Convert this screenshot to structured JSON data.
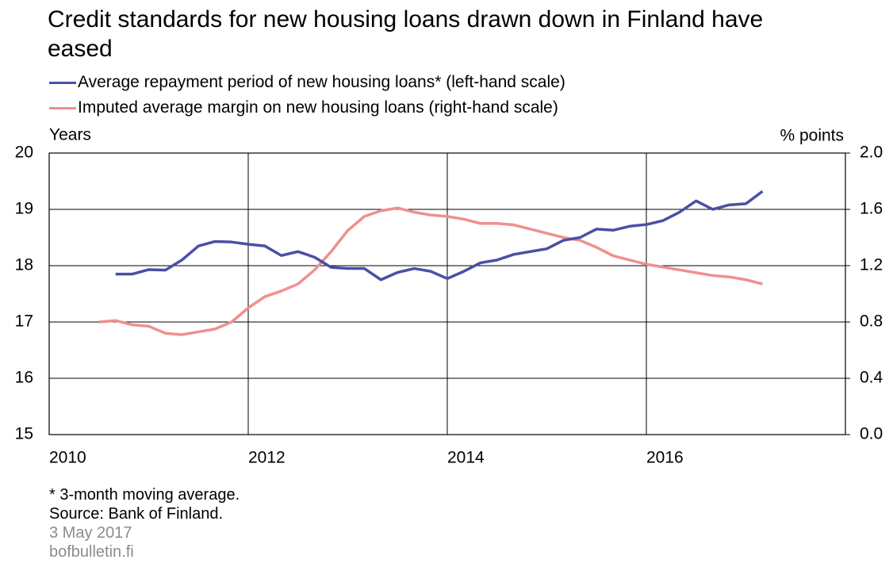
{
  "chart_data": {
    "type": "line",
    "title": "Credit standards for new housing loans drawn down in Finland have eased",
    "y_label": "Years",
    "y2_label": "% points",
    "x": [
      2010.5,
      2010.667,
      2010.833,
      2011,
      2011.167,
      2011.333,
      2011.5,
      2011.667,
      2011.833,
      2012,
      2012.167,
      2012.333,
      2012.5,
      2012.667,
      2012.833,
      2013,
      2013.167,
      2013.333,
      2013.5,
      2013.667,
      2013.833,
      2014,
      2014.167,
      2014.333,
      2014.5,
      2014.667,
      2014.833,
      2015,
      2015.167,
      2015.333,
      2015.5,
      2015.667,
      2015.833,
      2016,
      2016.167,
      2016.333,
      2016.5,
      2016.667,
      2016.833,
      2017,
      2017.167
    ],
    "series": [
      {
        "name": "Average repayment period of new housing loans* (left-hand scale)",
        "color": "#4b4fa6",
        "axis": "y",
        "values": [
          null,
          17.85,
          17.85,
          17.93,
          17.92,
          18.1,
          18.35,
          18.43,
          18.42,
          18.38,
          18.35,
          18.18,
          18.25,
          18.15,
          17.97,
          17.95,
          17.95,
          17.75,
          17.88,
          17.95,
          17.9,
          17.77,
          17.9,
          18.05,
          18.1,
          18.2,
          18.25,
          18.3,
          18.45,
          18.5,
          18.65,
          18.63,
          18.7,
          18.73,
          18.8,
          18.95,
          19.15,
          19.0,
          19.08,
          19.1,
          19.32
        ]
      },
      {
        "name": "Imputed average margin on new housing loans (right-hand scale)",
        "color": "#f08f8f",
        "axis": "y2",
        "values": [
          0.8,
          0.81,
          0.78,
          0.77,
          0.72,
          0.71,
          0.73,
          0.75,
          0.8,
          0.9,
          0.98,
          1.02,
          1.07,
          1.17,
          1.3,
          1.45,
          1.55,
          1.59,
          1.61,
          1.58,
          1.56,
          1.55,
          1.53,
          1.5,
          1.5,
          1.49,
          1.46,
          1.43,
          1.4,
          1.38,
          1.33,
          1.27,
          1.24,
          1.21,
          1.19,
          1.17,
          1.15,
          1.13,
          1.12,
          1.1,
          1.07
        ]
      }
    ],
    "xlim": [
      2010,
      2018
    ],
    "xticks": [
      2010,
      2012,
      2014,
      2016
    ],
    "ylim": [
      15,
      20
    ],
    "yticks": [
      15,
      16,
      17,
      18,
      19,
      20
    ],
    "y2lim": [
      0,
      2
    ],
    "y2ticks": [
      {
        "value": 0,
        "label": "0.0"
      },
      0.4,
      0.8,
      1.2,
      1.6,
      {
        "value": 2,
        "label": "2.0"
      }
    ],
    "grid": true,
    "notes": [
      "* 3-month moving average.",
      "Source: Bank of Finland."
    ],
    "date": "3 May 2017",
    "website": "bofbulletin.fi"
  }
}
